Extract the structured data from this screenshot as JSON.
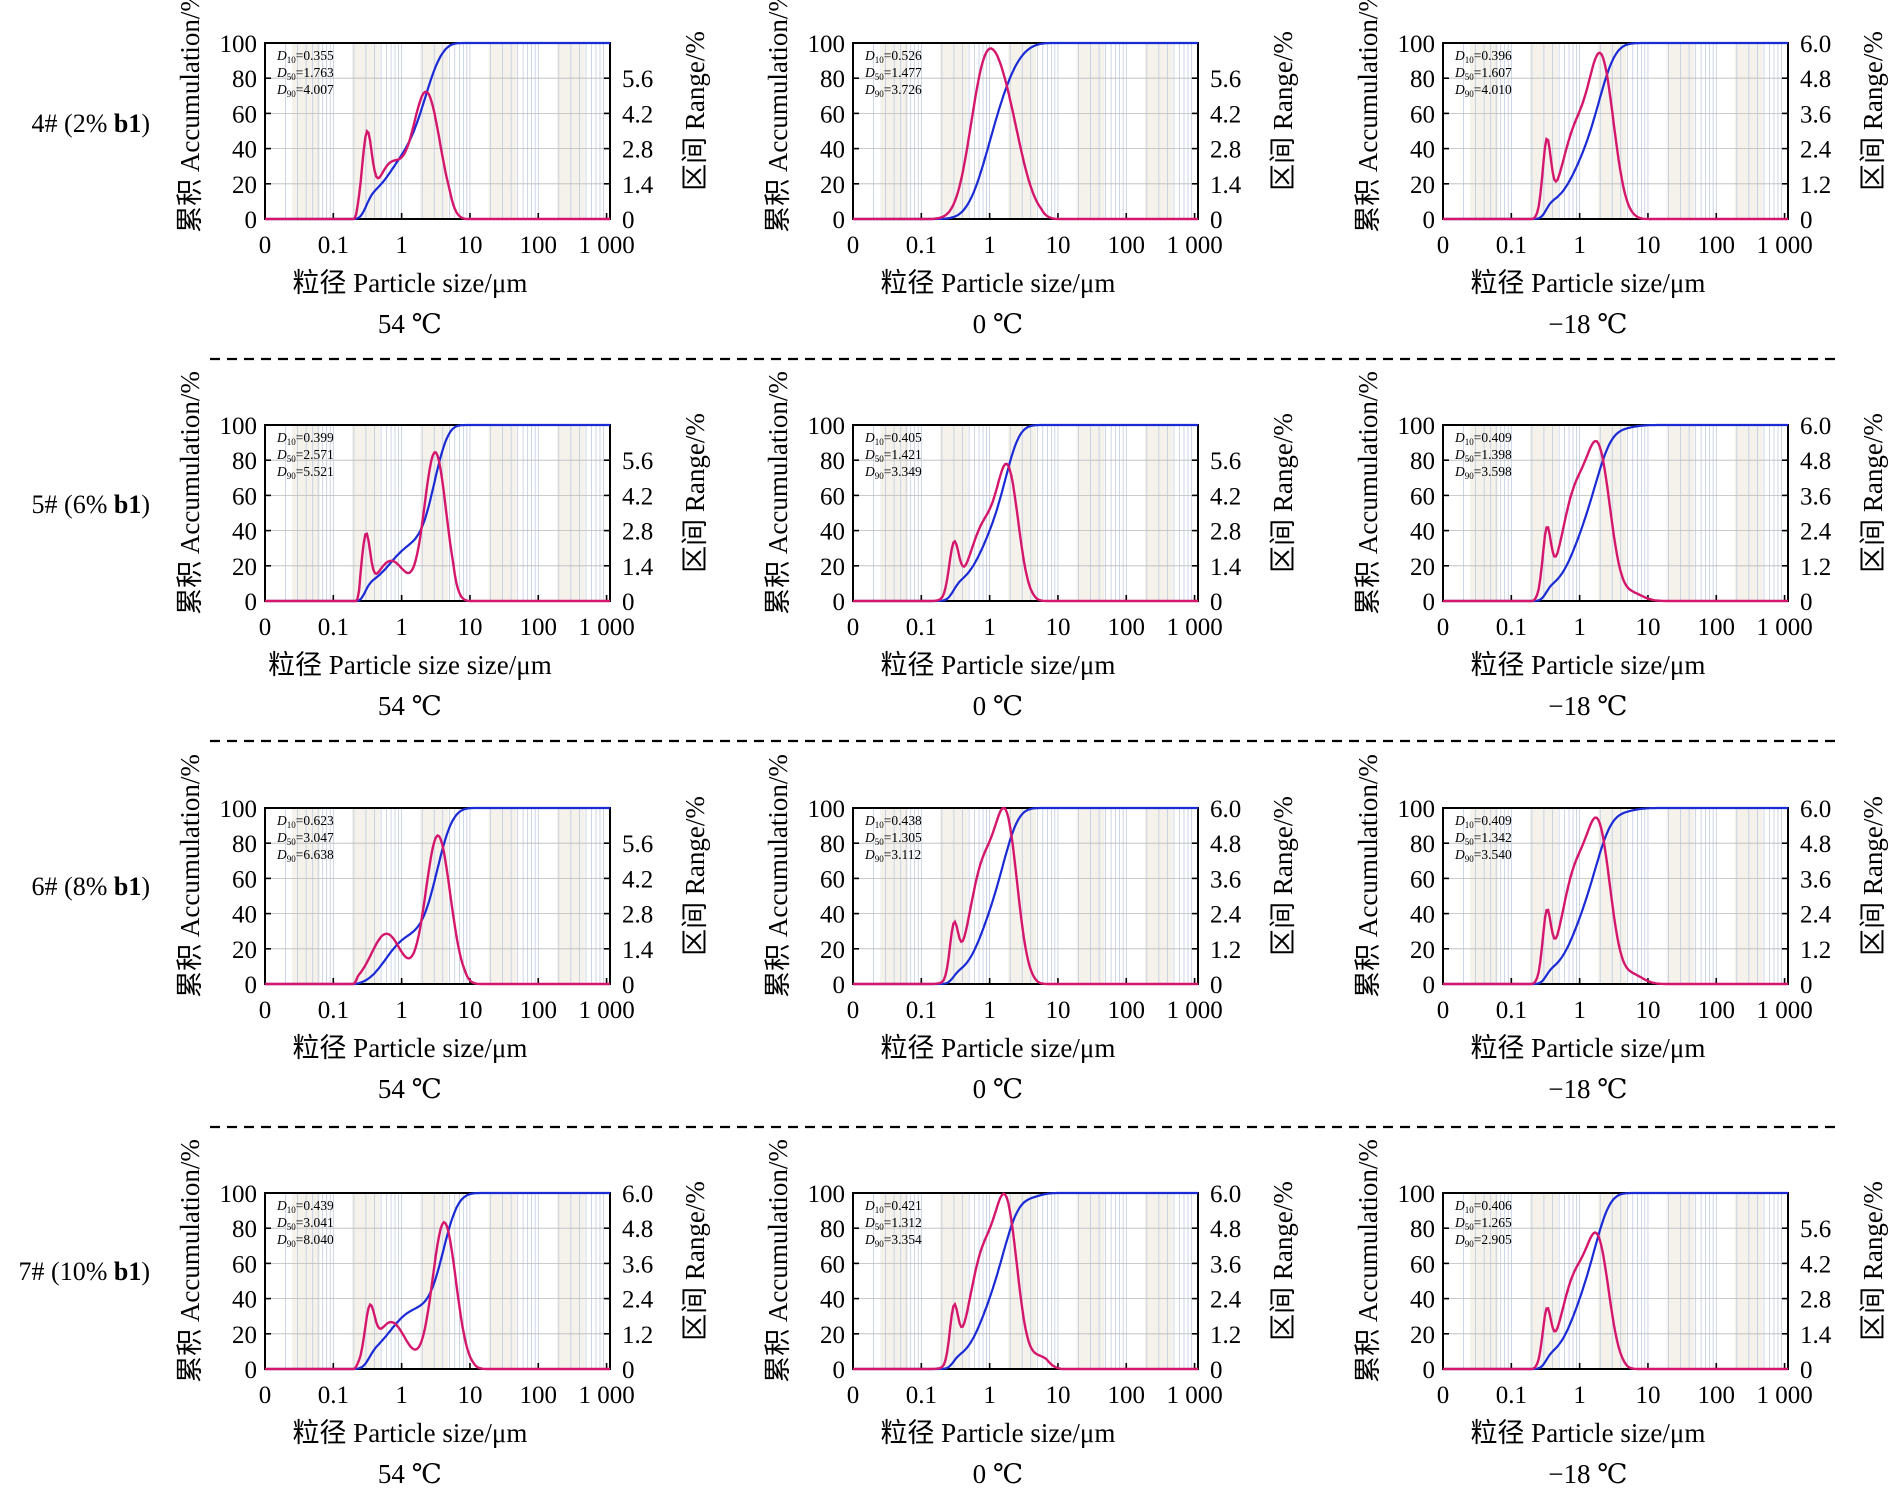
{
  "figure": {
    "type": "particle_size_distribution_grid",
    "colors": {
      "accumulation": "#1a2bd6",
      "range": "#d4176c",
      "separator": "#000000"
    },
    "left_axis": {
      "label": "累积 Accumulation/%",
      "ticks": [
        "0",
        "20",
        "40",
        "60",
        "80",
        "100"
      ]
    },
    "x_axis": {
      "scale": "log",
      "tick_labels": [
        "0",
        "0.1",
        "1",
        "10",
        "100",
        "1 000"
      ]
    },
    "right_axis_label": "区间 Range/%"
  },
  "rows": [
    {
      "label_prefix": "4# (2% ",
      "label_bold": "b1",
      "label_suffix": ")"
    },
    {
      "label_prefix": "5# (6% ",
      "label_bold": "b1",
      "label_suffix": ")"
    },
    {
      "label_prefix": "6# (8% ",
      "label_bold": "b1",
      "label_suffix": ")"
    },
    {
      "label_prefix": "7# (10% ",
      "label_bold": "b1",
      "label_suffix": ")"
    }
  ],
  "chart_data": [
    {
      "type": "line",
      "row": 0,
      "col": 0,
      "condition": "54 ℃",
      "xlabel": "粒径 Particle size/μm",
      "d10": "0.355",
      "d50": "1.763",
      "d90": "4.007",
      "right_ticks": [
        "0",
        "1.4",
        "2.8",
        "4.2",
        "5.6"
      ],
      "right_max": 7,
      "range_peaks": [
        [
          0.31,
          0.07,
          3.0
        ],
        [
          0.68,
          0.2,
          2.1
        ],
        [
          2.3,
          0.2,
          5.0
        ]
      ],
      "x_min": 0.2,
      "x_max": 9
    },
    {
      "type": "line",
      "row": 0,
      "col": 1,
      "condition": "0 ℃",
      "xlabel": "粒径 Particle size/μm",
      "d10": "0.526",
      "d50": "1.477",
      "d90": "3.726",
      "right_ticks": [
        "0",
        "1.4",
        "2.8",
        "4.2",
        "5.6"
      ],
      "right_max": 7,
      "range_peaks": [
        [
          0.75,
          0.2,
          3.5
        ],
        [
          1.5,
          0.26,
          4.9
        ]
      ],
      "x_min": 0.14,
      "x_max": 10
    },
    {
      "type": "line",
      "row": 0,
      "col": 2,
      "condition": "−18 ℃",
      "xlabel": "粒径 Particle size/μm",
      "d10": "0.396",
      "d50": "1.607",
      "d90": "4.010",
      "right_ticks": [
        "0",
        "1.2",
        "2.4",
        "3.6",
        "4.8",
        "6.0"
      ],
      "right_max": 6,
      "range_peaks": [
        [
          0.33,
          0.06,
          2.4
        ],
        [
          0.85,
          0.2,
          2.8
        ],
        [
          2.1,
          0.18,
          5.2
        ]
      ],
      "x_min": 0.2,
      "x_max": 12
    },
    {
      "type": "line",
      "row": 1,
      "col": 0,
      "condition": "54 ℃",
      "xlabel": "粒径 Particle size size/μm",
      "d10": "0.399",
      "d50": "2.571",
      "d90": "5.521",
      "right_ticks": [
        "0",
        "1.4",
        "2.8",
        "4.2",
        "5.6"
      ],
      "right_max": 7,
      "range_peaks": [
        [
          0.3,
          0.06,
          2.3
        ],
        [
          0.7,
          0.22,
          1.6
        ],
        [
          3.1,
          0.16,
          5.9
        ]
      ],
      "x_min": 0.22,
      "x_max": 10
    },
    {
      "type": "line",
      "row": 1,
      "col": 1,
      "condition": "0 ℃",
      "xlabel": "粒径 Particle size/μm",
      "d10": "0.405",
      "d50": "1.421",
      "d90": "3.349",
      "right_ticks": [
        "0",
        "1.4",
        "2.8",
        "4.2",
        "5.6"
      ],
      "right_max": 7,
      "range_peaks": [
        [
          0.3,
          0.07,
          2.0
        ],
        [
          0.85,
          0.22,
          3.0
        ],
        [
          1.9,
          0.15,
          4.5
        ]
      ],
      "x_min": 0.14,
      "x_max": 8
    },
    {
      "type": "line",
      "row": 1,
      "col": 2,
      "condition": "−18 ℃",
      "xlabel": "粒径 Particle size/μm",
      "d10": "0.409",
      "d50": "1.398",
      "d90": "3.598",
      "right_ticks": [
        "0",
        "1.2",
        "2.4",
        "3.6",
        "4.8",
        "6.0"
      ],
      "right_max": 6,
      "range_peaks": [
        [
          0.33,
          0.06,
          2.1
        ],
        [
          0.85,
          0.2,
          3.5
        ],
        [
          1.95,
          0.17,
          4.6
        ],
        [
          6,
          0.15,
          0.25
        ]
      ],
      "x_min": 0.2,
      "x_max": 30
    },
    {
      "type": "line",
      "row": 2,
      "col": 0,
      "condition": "54 ℃",
      "xlabel": "粒径 Particle size/μm",
      "d10": "0.623",
      "d50": "3.047",
      "d90": "6.638",
      "right_ticks": [
        "0",
        "1.4",
        "2.8",
        "4.2",
        "5.6"
      ],
      "right_max": 7,
      "range_peaks": [
        [
          0.6,
          0.22,
          2.0
        ],
        [
          3.4,
          0.18,
          5.9
        ]
      ],
      "x_min": 0.2,
      "x_max": 15
    },
    {
      "type": "line",
      "row": 2,
      "col": 1,
      "condition": "0 ℃",
      "xlabel": "粒径 Particle size/μm",
      "d10": "0.438",
      "d50": "1.305",
      "d90": "3.112",
      "right_ticks": [
        "0",
        "1.2",
        "2.4",
        "3.6",
        "4.8",
        "6.0"
      ],
      "right_max": 6,
      "range_peaks": [
        [
          0.3,
          0.06,
          1.7
        ],
        [
          0.8,
          0.2,
          3.9
        ],
        [
          1.8,
          0.16,
          5.0
        ]
      ],
      "x_min": 0.14,
      "x_max": 8
    },
    {
      "type": "line",
      "row": 2,
      "col": 2,
      "condition": "−18 ℃",
      "xlabel": "粒径 Particle size/μm",
      "d10": "0.409",
      "d50": "1.342",
      "d90": "3.540",
      "right_ticks": [
        "0",
        "1.2",
        "2.4",
        "3.6",
        "4.8",
        "6.0"
      ],
      "right_max": 6,
      "range_peaks": [
        [
          0.33,
          0.06,
          2.1
        ],
        [
          0.85,
          0.2,
          3.6
        ],
        [
          1.95,
          0.17,
          4.8
        ],
        [
          6,
          0.15,
          0.3
        ]
      ],
      "x_min": 0.2,
      "x_max": 30
    },
    {
      "type": "line",
      "row": 3,
      "col": 0,
      "condition": "54 ℃",
      "xlabel": "粒径 Particle size/μm",
      "d10": "0.439",
      "d50": "3.041",
      "d90": "8.040",
      "right_ticks": [
        "0",
        "1.2",
        "2.4",
        "3.6",
        "4.8",
        "6.0"
      ],
      "right_max": 6,
      "range_peaks": [
        [
          0.34,
          0.07,
          1.6
        ],
        [
          0.7,
          0.22,
          1.6
        ],
        [
          4.2,
          0.17,
          5.0
        ]
      ],
      "x_min": 0.2,
      "x_max": 20
    },
    {
      "type": "line",
      "row": 3,
      "col": 1,
      "condition": "0 ℃",
      "xlabel": "粒径 Particle size/μm",
      "d10": "0.421",
      "d50": "1.312",
      "d90": "3.354",
      "right_ticks": [
        "0",
        "1.2",
        "2.4",
        "3.6",
        "4.8",
        "6.0"
      ],
      "right_max": 6,
      "range_peaks": [
        [
          0.3,
          0.06,
          1.8
        ],
        [
          0.8,
          0.2,
          3.8
        ],
        [
          1.8,
          0.16,
          5.0
        ],
        [
          5.5,
          0.15,
          0.4
        ]
      ],
      "x_min": 0.14,
      "x_max": 12
    },
    {
      "type": "line",
      "row": 3,
      "col": 2,
      "condition": "−18 ℃",
      "xlabel": "粒径 Particle size/μm",
      "d10": "0.406",
      "d50": "1.265",
      "d90": "2.905",
      "right_ticks": [
        "0",
        "1.4",
        "2.8",
        "4.2",
        "5.6"
      ],
      "right_max": 7,
      "range_peaks": [
        [
          0.33,
          0.06,
          2.0
        ],
        [
          0.85,
          0.2,
          3.5
        ],
        [
          1.9,
          0.16,
          4.5
        ]
      ],
      "x_min": 0.2,
      "x_max": 8
    }
  ]
}
